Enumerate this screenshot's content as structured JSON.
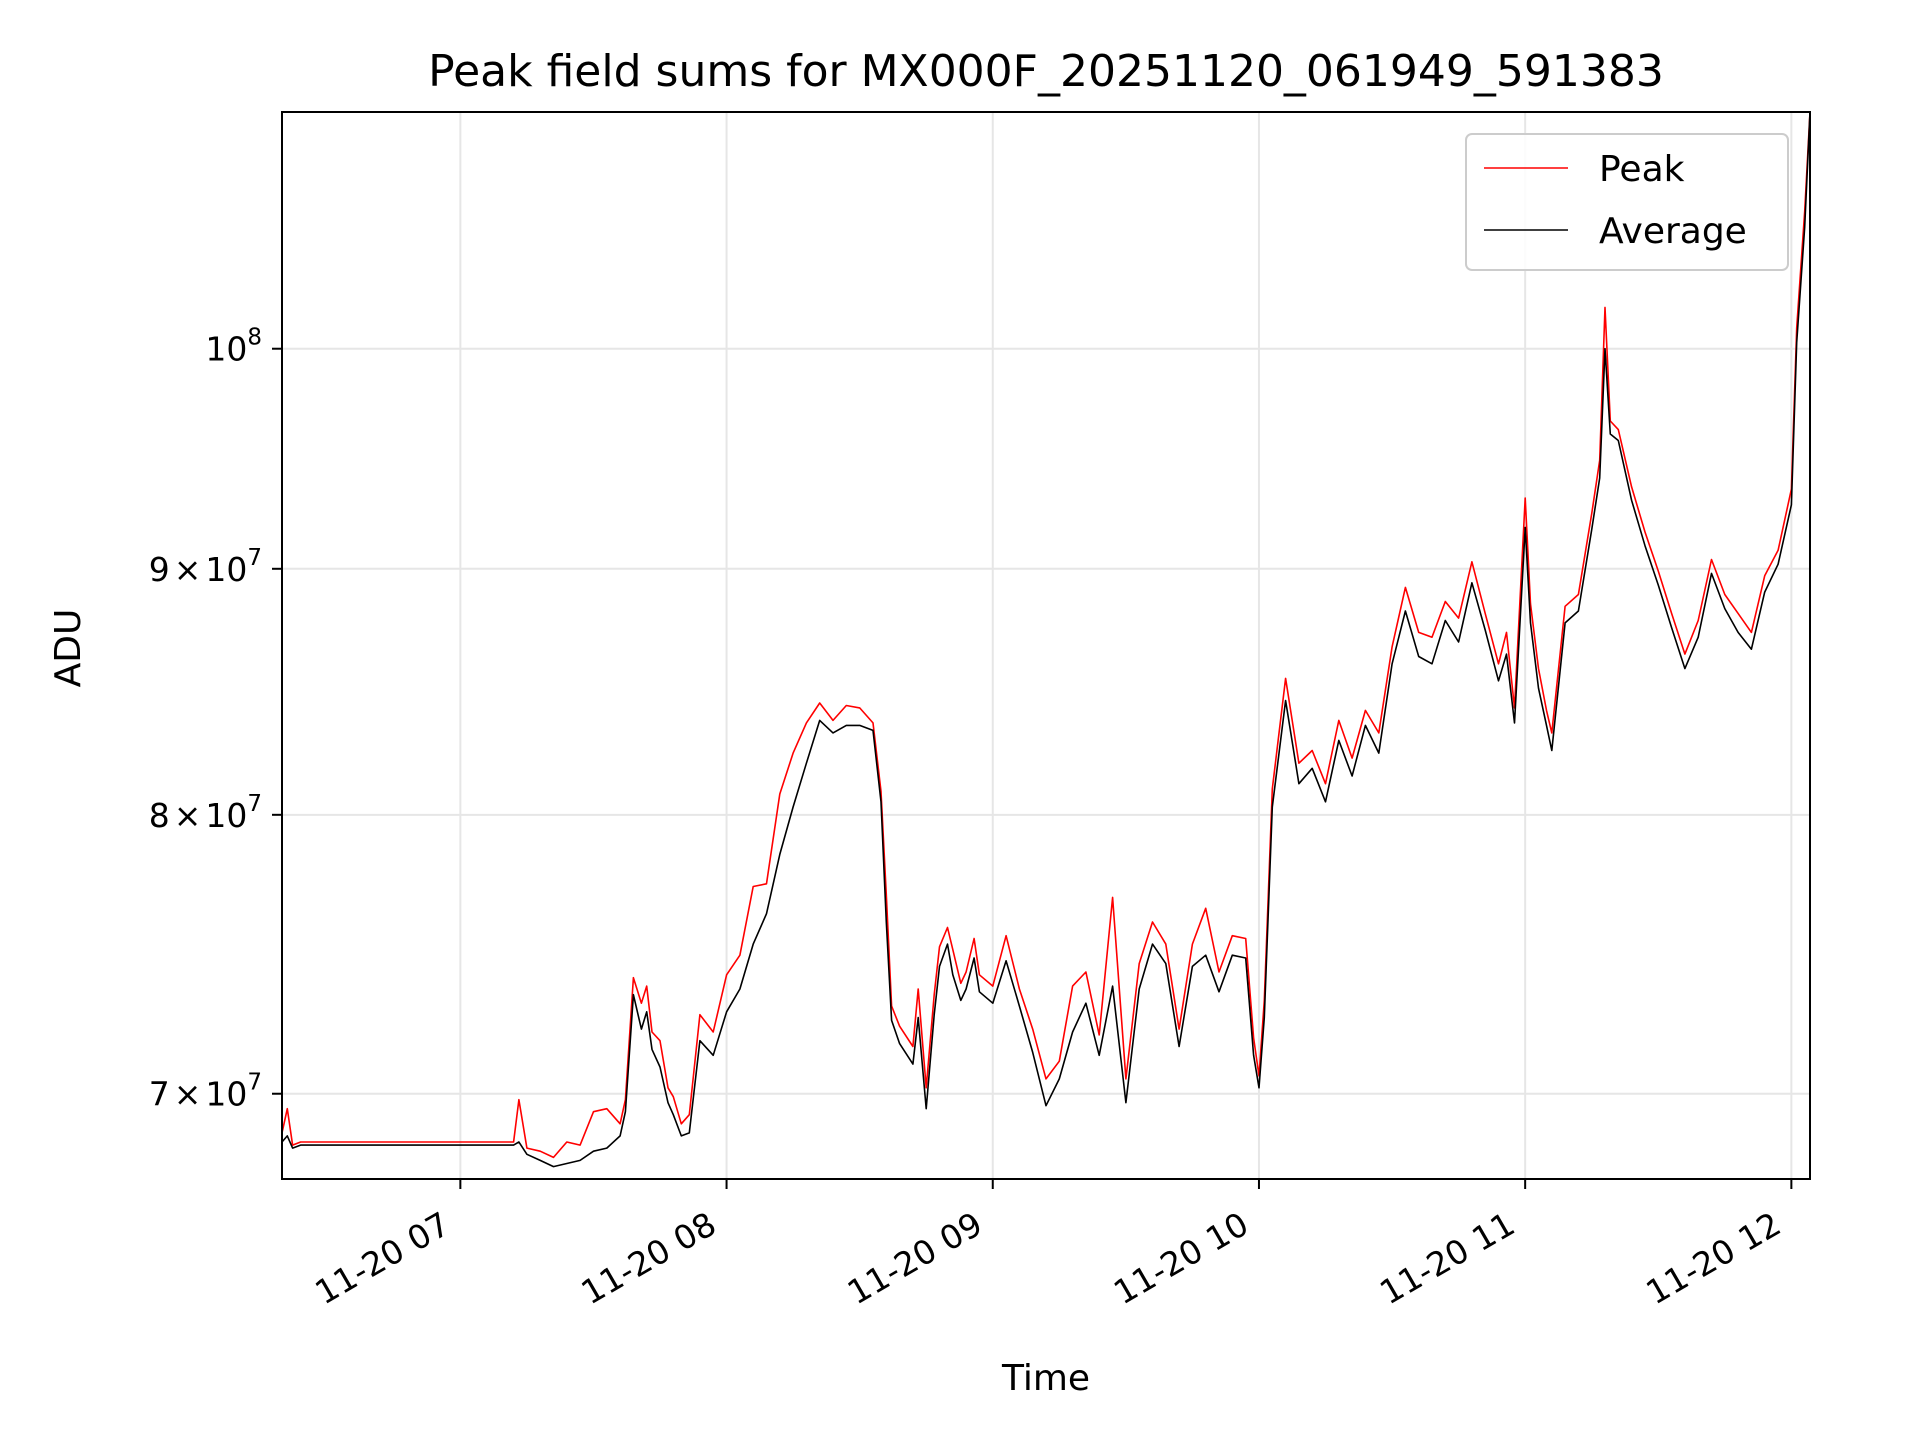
{
  "chart_data": {
    "type": "line",
    "title": "Peak field sums for MX000F_20251120_061949_591383",
    "xlabel": "Time",
    "ylabel": "ADU",
    "y_scale": "log",
    "grid": true,
    "legend_position": "top-right",
    "xlim_hours": [
      6.33,
      12.07
    ],
    "ylim": [
      67200000,
      112000000
    ],
    "x_ticks": [
      {
        "value": 7,
        "label": "11-20 07"
      },
      {
        "value": 8,
        "label": "11-20 08"
      },
      {
        "value": 9,
        "label": "11-20 09"
      },
      {
        "value": 10,
        "label": "11-20 10"
      },
      {
        "value": 11,
        "label": "11-20 11"
      },
      {
        "value": 12,
        "label": "11-20 12"
      }
    ],
    "y_ticks": [
      {
        "value": 70000000,
        "mantissa": "7",
        "exponent": "7"
      },
      {
        "value": 80000000,
        "mantissa": "8",
        "exponent": "7"
      },
      {
        "value": 90000000,
        "mantissa": "9",
        "exponent": "7"
      },
      {
        "value": 100000000,
        "mantissa": "",
        "exponent": "8"
      }
    ],
    "tick_base": "10",
    "tick_times": "×",
    "series": [
      {
        "name": "Peak",
        "color": "#ff0000"
      },
      {
        "name": "Average",
        "color": "#000000"
      }
    ],
    "x_hours": [
      6.33,
      6.35,
      6.37,
      6.4,
      6.5,
      6.6,
      6.7,
      6.8,
      6.9,
      7.0,
      7.1,
      7.2,
      7.22,
      7.25,
      7.3,
      7.35,
      7.4,
      7.45,
      7.5,
      7.55,
      7.6,
      7.62,
      7.65,
      7.68,
      7.7,
      7.72,
      7.75,
      7.78,
      7.8,
      7.83,
      7.86,
      7.9,
      7.95,
      8.0,
      8.05,
      8.1,
      8.15,
      8.2,
      8.25,
      8.3,
      8.35,
      8.4,
      8.45,
      8.5,
      8.55,
      8.58,
      8.6,
      8.62,
      8.65,
      8.7,
      8.72,
      8.75,
      8.78,
      8.8,
      8.83,
      8.85,
      8.88,
      8.9,
      8.93,
      8.95,
      9.0,
      9.05,
      9.1,
      9.15,
      9.2,
      9.25,
      9.3,
      9.35,
      9.4,
      9.45,
      9.5,
      9.55,
      9.6,
      9.65,
      9.7,
      9.75,
      9.8,
      9.85,
      9.9,
      9.95,
      9.98,
      10.0,
      10.02,
      10.05,
      10.1,
      10.15,
      10.2,
      10.25,
      10.3,
      10.35,
      10.4,
      10.45,
      10.5,
      10.55,
      10.6,
      10.65,
      10.7,
      10.75,
      10.8,
      10.85,
      10.9,
      10.93,
      10.96,
      11.0,
      11.02,
      11.05,
      11.08,
      11.1,
      11.15,
      11.2,
      11.25,
      11.28,
      11.3,
      11.32,
      11.35,
      11.4,
      11.45,
      11.5,
      11.55,
      11.6,
      11.65,
      11.7,
      11.75,
      11.8,
      11.85,
      11.9,
      11.95,
      12.0,
      12.02,
      12.05,
      12.07
    ],
    "average": [
      68400000,
      68600000,
      68200000,
      68300000,
      68300000,
      68300000,
      68300000,
      68300000,
      68300000,
      68300000,
      68300000,
      68300000,
      68400000,
      68000000,
      67800000,
      67600000,
      67700000,
      67800000,
      68100000,
      68200000,
      68600000,
      69400000,
      73400000,
      72200000,
      72800000,
      71500000,
      70900000,
      69700000,
      69300000,
      68600000,
      68700000,
      71800000,
      71300000,
      72800000,
      73600000,
      75200000,
      76300000,
      78500000,
      80300000,
      82000000,
      83700000,
      83200000,
      83500000,
      83500000,
      83300000,
      80500000,
      76000000,
      72500000,
      71700000,
      71000000,
      72600000,
      69500000,
      72700000,
      74400000,
      75200000,
      74100000,
      73200000,
      73600000,
      74700000,
      73500000,
      73100000,
      74600000,
      73000000,
      71400000,
      69600000,
      70500000,
      72100000,
      73100000,
      71300000,
      73700000,
      69700000,
      73600000,
      75200000,
      74500000,
      71600000,
      74400000,
      74800000,
      73500000,
      74800000,
      74700000,
      71300000,
      70200000,
      72600000,
      80300000,
      84500000,
      81200000,
      81800000,
      80500000,
      82900000,
      81500000,
      83500000,
      82400000,
      86000000,
      88200000,
      86300000,
      86000000,
      87800000,
      86900000,
      89400000,
      87400000,
      85300000,
      86400000,
      83600000,
      91800000,
      87700000,
      85000000,
      83500000,
      82500000,
      87700000,
      88200000,
      91700000,
      94000000,
      100000000,
      96000000,
      95700000,
      93000000,
      91000000,
      89300000,
      87500000,
      85800000,
      87100000,
      89800000,
      88300000,
      87300000,
      86600000,
      89000000,
      90200000,
      92800000,
      100300000,
      106000000,
      112000000
    ],
    "peak": [
      68700000,
      69500000,
      68300000,
      68400000,
      68400000,
      68400000,
      68400000,
      68400000,
      68400000,
      68400000,
      68400000,
      68400000,
      69800000,
      68200000,
      68100000,
      67900000,
      68400000,
      68300000,
      69400000,
      69500000,
      69000000,
      69800000,
      74000000,
      73100000,
      73700000,
      72100000,
      71800000,
      70200000,
      69900000,
      69000000,
      69300000,
      72700000,
      72100000,
      74100000,
      74800000,
      77300000,
      77400000,
      80800000,
      82400000,
      83600000,
      84400000,
      83700000,
      84300000,
      84200000,
      83600000,
      80900000,
      77000000,
      73000000,
      72300000,
      71600000,
      73600000,
      70200000,
      73400000,
      75100000,
      75800000,
      75000000,
      73800000,
      74200000,
      75400000,
      74100000,
      73700000,
      75500000,
      73600000,
      72200000,
      70500000,
      71100000,
      73700000,
      74200000,
      72000000,
      76900000,
      70500000,
      74500000,
      76000000,
      75200000,
      72200000,
      75200000,
      76500000,
      74200000,
      75500000,
      75400000,
      71900000,
      70600000,
      73200000,
      81000000,
      85400000,
      82000000,
      82500000,
      81200000,
      83700000,
      82200000,
      84100000,
      83200000,
      86700000,
      89200000,
      87300000,
      87100000,
      88600000,
      87900000,
      90300000,
      88100000,
      86000000,
      87300000,
      84200000,
      93100000,
      88500000,
      85800000,
      84100000,
      83200000,
      88400000,
      88900000,
      92400000,
      94800000,
      102000000,
      96600000,
      96200000,
      93600000,
      91600000,
      89900000,
      88100000,
      86400000,
      87800000,
      90400000,
      88900000,
      88100000,
      87300000,
      89700000,
      90800000,
      93500000,
      101000000,
      106800000,
      112000000
    ]
  }
}
